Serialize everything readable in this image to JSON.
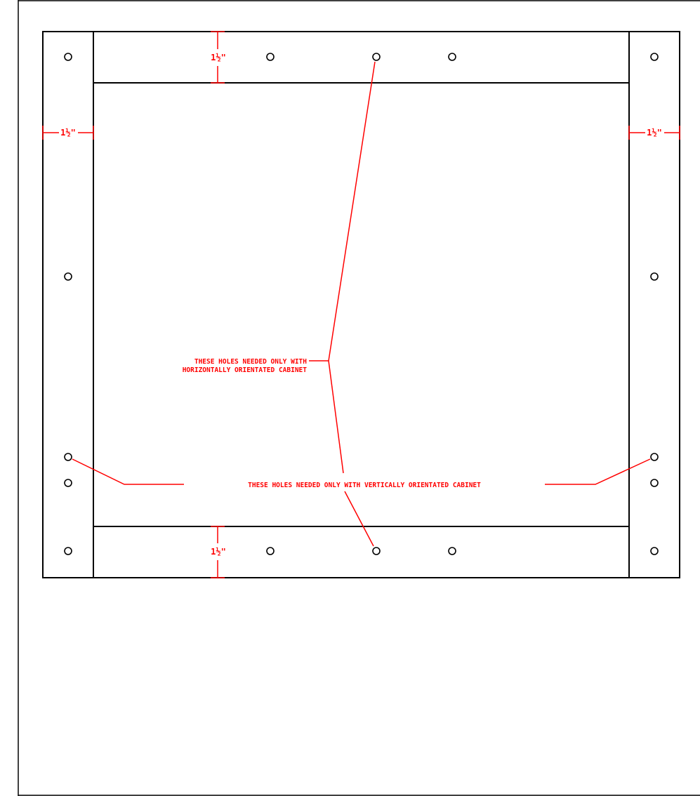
{
  "colors": {
    "outline": "#000000",
    "annotation": "#ff0000",
    "background": "#ffffff"
  },
  "dimensions": {
    "rail_width_label_left": "1½\"",
    "rail_width_label_right": "1½\"",
    "rail_height_label_top": "1½\"",
    "rail_height_label_bottom": "1½\""
  },
  "notes": {
    "horizontal_line1": "THESE HOLES NEEDED ONLY WITH",
    "horizontal_line2": "HORIZONTALLY ORIENTATED CABINET",
    "vertical": "THESE HOLES NEEDED ONLY WITH VERTICALLY ORIENTATED CABINET"
  }
}
